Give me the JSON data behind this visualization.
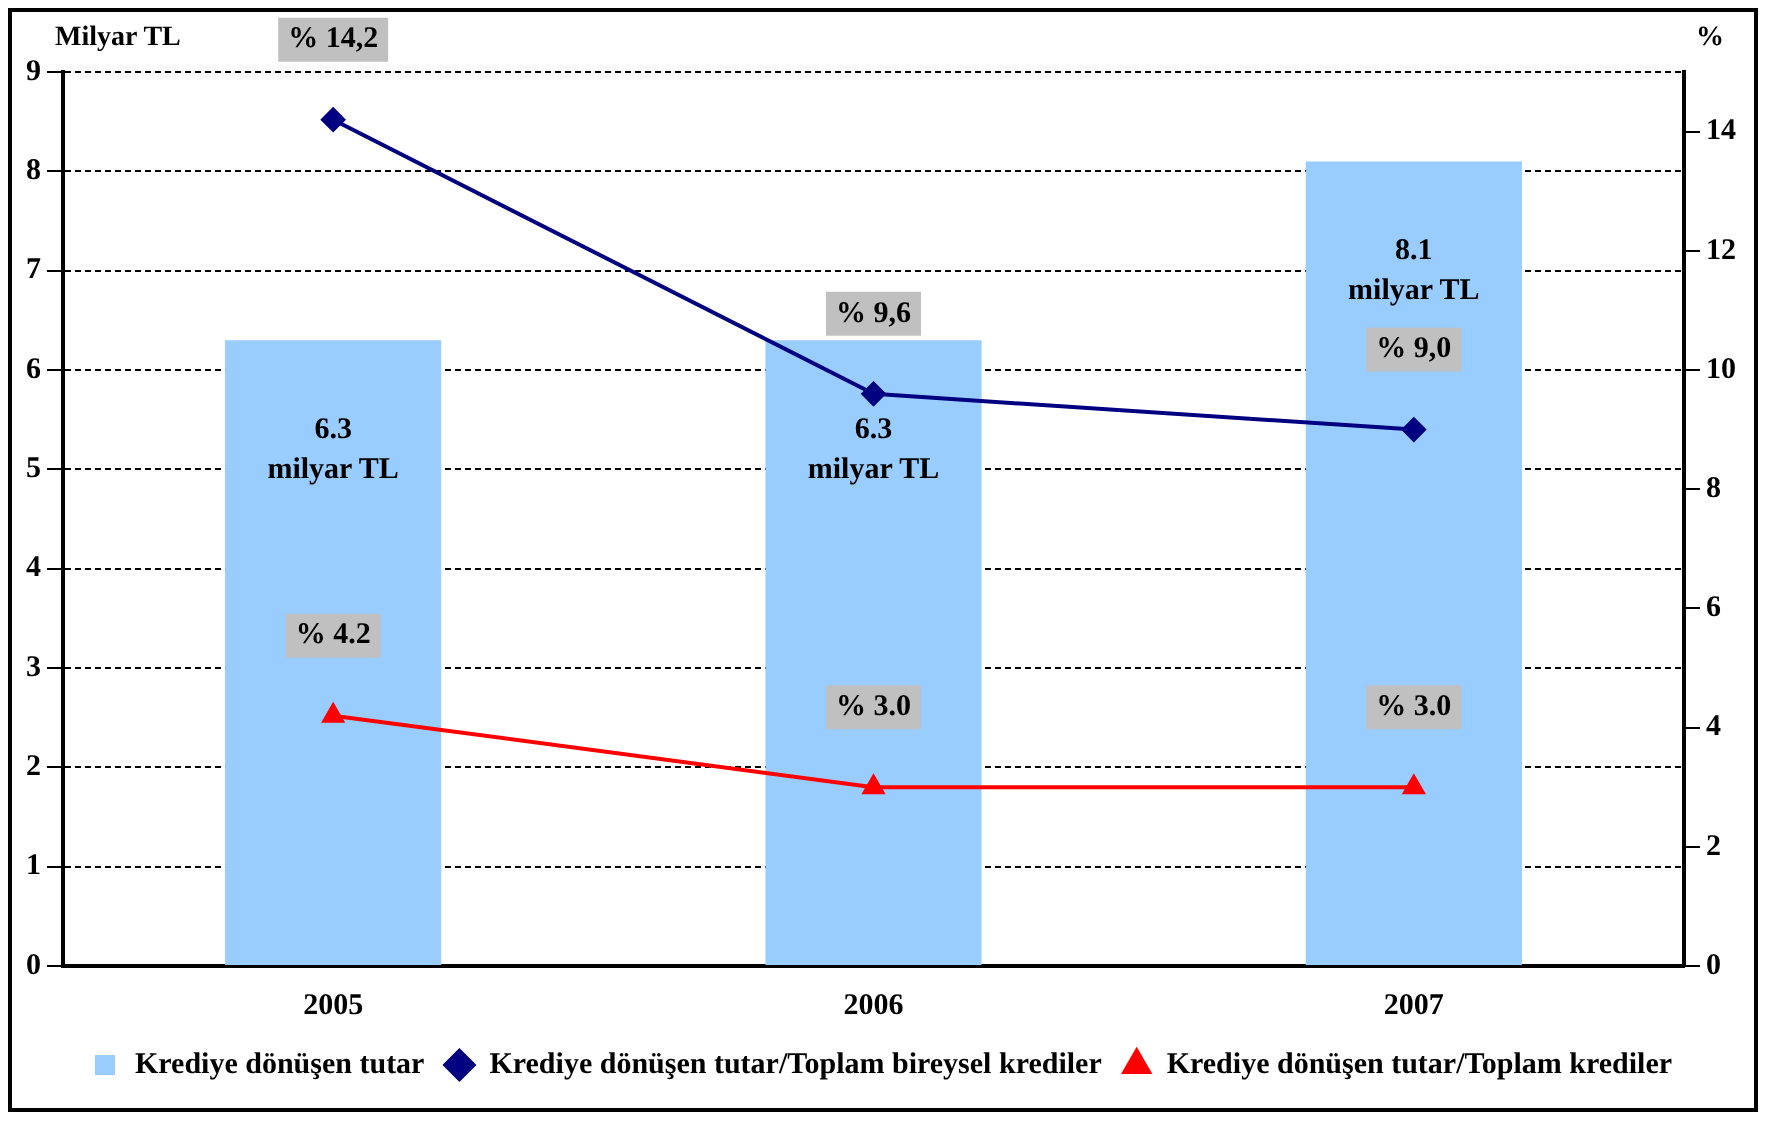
{
  "chart_data": {
    "type": "bar",
    "ylabel": "Milyar TL",
    "y2label": "%",
    "categories": [
      "2005",
      "2006",
      "2007"
    ],
    "series": [
      {
        "name": "Krediye dönüşen tutar",
        "color": "#99ccff",
        "values": [
          6.3,
          6.3,
          8.1
        ],
        "value_labels": [
          "6.3\nmilyar TL",
          "6.3\nmilyar TL",
          "8.1\nmilyar TL"
        ]
      },
      {
        "name": "Krediye dönüşen tutar/Toplam bireysel krediler",
        "type": "line",
        "axis": "y2",
        "marker": "diamond",
        "color": "#000080",
        "values": [
          14.2,
          9.6,
          9.0
        ],
        "value_labels": [
          "% 14,2",
          "% 9,6",
          "% 9,0"
        ]
      },
      {
        "name": "Krediye dönüşen tutar/Toplam krediler",
        "type": "line",
        "axis": "y2",
        "marker": "triangle",
        "color": "#ff0000",
        "values": [
          4.2,
          3.0,
          3.0
        ],
        "value_labels": [
          "% 4.2",
          "% 3.0",
          "% 3.0"
        ]
      }
    ],
    "ylim": [
      0,
      9
    ],
    "yticks": [
      0,
      1,
      2,
      3,
      4,
      5,
      6,
      7,
      8,
      9
    ],
    "y2lim": [
      0,
      15
    ],
    "y2ticks": [
      0,
      2,
      4,
      6,
      8,
      10,
      12,
      14
    ],
    "grid": "y",
    "legend": "bottom"
  }
}
